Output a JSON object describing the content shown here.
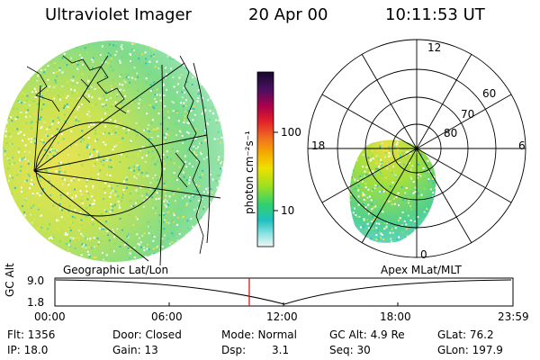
{
  "header": {
    "instrument": "Ultraviolet Imager",
    "date": "20 Apr 00",
    "time": "10:11:53 UT"
  },
  "colorbar": {
    "unit_label": "photon cm⁻²s⁻¹",
    "ticks": [
      "100",
      "10"
    ],
    "colors": [
      "#1a0a2e",
      "#4a1060",
      "#b0004a",
      "#e0202a",
      "#f07020",
      "#f5a000",
      "#f0e000",
      "#a0e020",
      "#30d070",
      "#20c0c0",
      "#80e0e0",
      "#e0f0f0"
    ]
  },
  "left_panel": {
    "caption": "Geographic Lat/Lon"
  },
  "right_panel": {
    "caption": "Apex MLat/MLT",
    "mlt_labels": {
      "top": "12",
      "left": "18",
      "right": "6",
      "bottom": "0"
    },
    "lat_labels": [
      "60",
      "70",
      "80"
    ]
  },
  "altitude_plot": {
    "ylabel": "GC Alt",
    "y_ticks": [
      "9.0",
      "1.8"
    ],
    "x_ticks": [
      "00:00",
      "06:00",
      "12:00",
      "18:00",
      "23:59"
    ],
    "current_marker_time": "10:11",
    "marker_color": "#e00000"
  },
  "status": {
    "flt": "Flt: 1356",
    "ip": "IP: 18.0",
    "door": "Door: Closed",
    "gain": "Gain: 13",
    "mode": "Mode: Normal",
    "dsp_label": "Dsp:",
    "dsp_value": "3.1",
    "gc_alt": "GC Alt: 4.9 Re",
    "seq": "Seq: 30",
    "glat": "GLat: 76.2",
    "glon": "GLon: 197.9"
  }
}
